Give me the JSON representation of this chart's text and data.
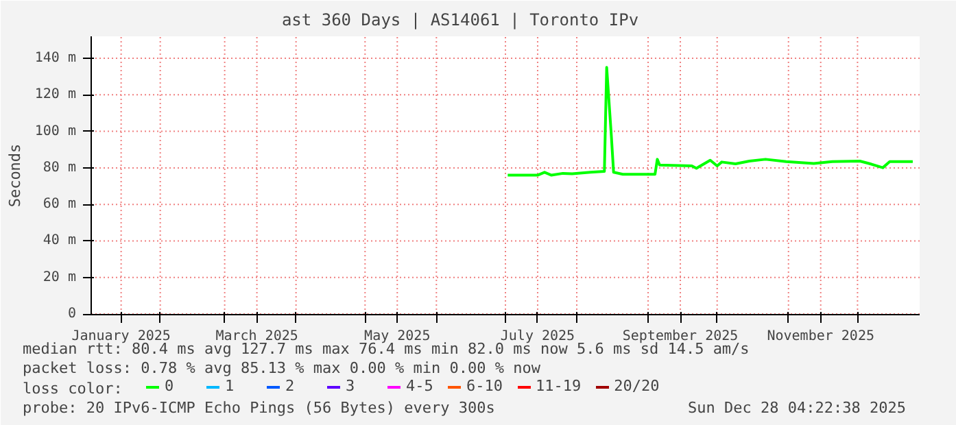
{
  "chart_data": {
    "type": "line",
    "title": "ast 360 Days | AS14061 | Toronto IPv",
    "ylabel": "Seconds",
    "x": [
      "2025-07-02",
      "2025-07-15",
      "2025-07-18",
      "2025-07-21",
      "2025-07-26",
      "2025-07-30",
      "2025-08-07",
      "2025-08-13",
      "2025-08-14",
      "2025-08-16",
      "2025-08-17",
      "2025-08-21",
      "2025-09-04",
      "2025-09-05",
      "2025-09-06",
      "2025-09-20",
      "2025-09-22",
      "2025-09-28",
      "2025-10-01",
      "2025-10-03",
      "2025-10-09",
      "2025-10-15",
      "2025-10-22",
      "2025-10-31",
      "2025-11-12",
      "2025-11-20",
      "2025-12-02",
      "2025-12-06",
      "2025-12-12",
      "2025-12-15",
      "2025-12-25"
    ],
    "series": [
      {
        "name": "0",
        "color": "#00ff00",
        "values": [
          76.0,
          76.0,
          77.6,
          76.0,
          77.0,
          76.8,
          77.6,
          78.1,
          135,
          98,
          77.6,
          76.5,
          76.5,
          84.7,
          81.6,
          81.1,
          79.8,
          84.2,
          81.1,
          83.2,
          82.2,
          83.7,
          84.7,
          83.4,
          82.4,
          83.4,
          83.7,
          82.4,
          80.1,
          83.4,
          83.4
        ]
      },
      {
        "name": "1",
        "color": "#00b8ff",
        "values": [
          null,
          null,
          null,
          null,
          null,
          null,
          null,
          null,
          null,
          null,
          null,
          null,
          null,
          null,
          null,
          null,
          null,
          null,
          null,
          null,
          null,
          null,
          null,
          null,
          null,
          null,
          null,
          null,
          null,
          null,
          null
        ]
      },
      {
        "name": "2",
        "color": "#0059ff",
        "values": [
          null,
          null,
          null,
          null,
          null,
          null,
          null,
          null,
          null,
          null,
          null,
          null,
          null,
          null,
          null,
          null,
          null,
          null,
          null,
          null,
          null,
          null,
          null,
          null,
          null,
          null,
          null,
          null,
          null,
          null,
          null
        ]
      },
      {
        "name": "3",
        "color": "#5e00ff",
        "values": [
          null,
          null,
          null,
          null,
          null,
          null,
          null,
          null,
          null,
          null,
          null,
          null,
          null,
          null,
          null,
          null,
          null,
          null,
          null,
          null,
          null,
          null,
          null,
          null,
          null,
          null,
          null,
          null,
          null,
          null,
          null
        ]
      },
      {
        "name": "4-5",
        "color": "#ff00ff",
        "values": [
          null,
          null,
          null,
          null,
          null,
          null,
          null,
          null,
          null,
          null,
          null,
          null,
          null,
          null,
          null,
          null,
          null,
          null,
          null,
          null,
          null,
          null,
          null,
          null,
          null,
          null,
          null,
          null,
          null,
          null,
          null
        ]
      },
      {
        "name": "6-10",
        "color": "#ff5500",
        "values": [
          null,
          null,
          null,
          null,
          null,
          null,
          null,
          null,
          null,
          null,
          null,
          null,
          null,
          null,
          null,
          null,
          null,
          null,
          null,
          null,
          null,
          null,
          null,
          null,
          null,
          null,
          null,
          null,
          null,
          null,
          null
        ]
      },
      {
        "name": "11-19",
        "color": "#ff0000",
        "values": [
          null,
          null,
          null,
          null,
          null,
          null,
          null,
          null,
          null,
          null,
          null,
          null,
          null,
          null,
          null,
          null,
          null,
          null,
          null,
          null,
          null,
          null,
          null,
          null,
          null,
          null,
          null,
          null,
          null,
          null,
          null
        ]
      },
      {
        "name": "20/20",
        "color": "#a10000",
        "values": [
          null,
          null,
          null,
          null,
          null,
          null,
          null,
          null,
          null,
          null,
          null,
          null,
          null,
          null,
          null,
          null,
          null,
          null,
          null,
          null,
          null,
          null,
          null,
          null,
          null,
          null,
          null,
          null,
          null,
          null,
          null
        ]
      }
    ],
    "xlim": [
      "2025-01-02",
      "2025-12-28"
    ],
    "xticks": [
      {
        "value": "2025-01-15",
        "label": "January 2025"
      },
      {
        "value": "2025-02-01",
        "label": null
      },
      {
        "value": "2025-03-01",
        "label": null
      },
      {
        "value": "2025-03-15",
        "label": "March 2025"
      },
      {
        "value": "2025-04-01",
        "label": null
      },
      {
        "value": "2025-05-01",
        "label": null
      },
      {
        "value": "2025-05-15",
        "label": "May 2025"
      },
      {
        "value": "2025-06-01",
        "label": null
      },
      {
        "value": "2025-07-01",
        "label": null
      },
      {
        "value": "2025-07-15",
        "label": "July 2025"
      },
      {
        "value": "2025-08-01",
        "label": null
      },
      {
        "value": "2025-09-01",
        "label": null
      },
      {
        "value": "2025-09-15",
        "label": "September 2025"
      },
      {
        "value": "2025-10-01",
        "label": null
      },
      {
        "value": "2025-11-01",
        "label": null
      },
      {
        "value": "2025-11-15",
        "label": "November 2025"
      },
      {
        "value": "2025-12-01",
        "label": null
      }
    ],
    "ylim": [
      0,
      152
    ],
    "yticks": [
      0,
      {
        "value": 20,
        "label": "20 m"
      },
      {
        "value": 40,
        "label": "40 m"
      },
      {
        "value": 60,
        "label": "60 m"
      },
      {
        "value": 80,
        "label": "80 m"
      },
      {
        "value": 100,
        "label": "100 m"
      },
      {
        "value": 120,
        "label": "120 m"
      },
      {
        "value": 140,
        "label": "140 m"
      }
    ],
    "grid": true,
    "legend": "bottom",
    "legend_title": "loss color:",
    "line_style": "solid",
    "annotations": [
      "median rtt:  80.4 ms avg  127.7 ms max  76.4 ms min  82.0 ms now  5.6 ms sd  14.5   am/s",
      "packet loss: 0.78 % avg  85.13 % max  0.00 % min  0.00 % now",
      "probe:       20 IPv6-ICMP Echo Pings (56 Bytes) every 300s",
      "Sun Dec 28 04:22:38 2025"
    ]
  }
}
